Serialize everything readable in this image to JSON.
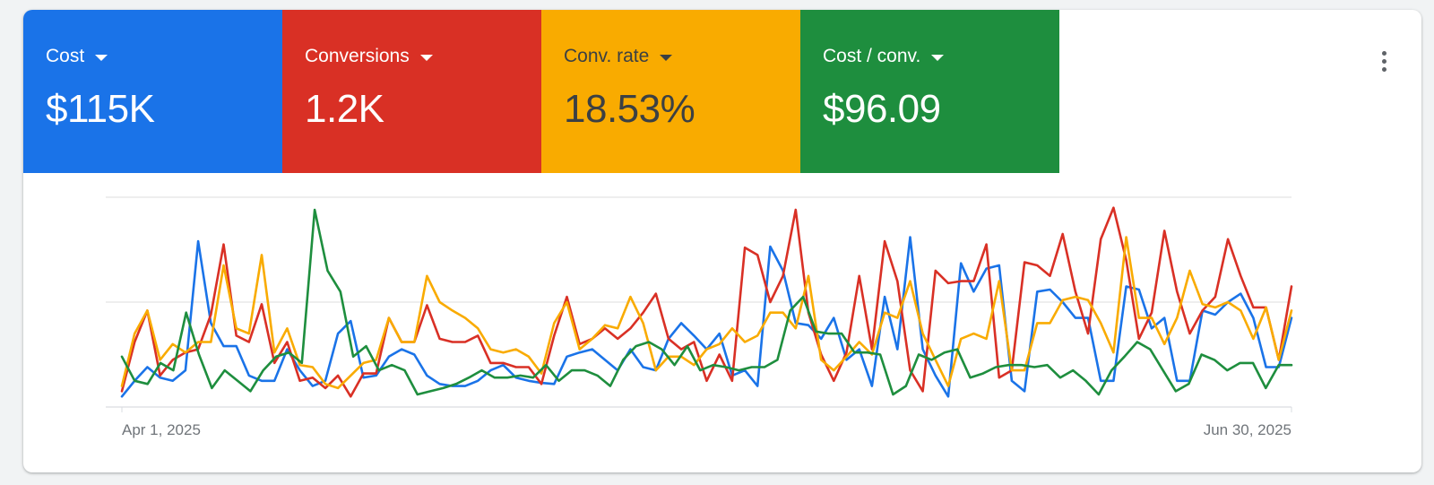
{
  "metrics": [
    {
      "label": "Cost",
      "value": "$115K",
      "bg": "#1a73e8",
      "fg": "#ffffff",
      "line": "#1a73e8"
    },
    {
      "label": "Conversions",
      "value": "1.2K",
      "bg": "#d93025",
      "fg": "#ffffff",
      "line": "#d93025"
    },
    {
      "label": "Conv. rate",
      "value": "18.53%",
      "bg": "#f9ab00",
      "fg": "#3c4043",
      "line": "#f9ab00"
    },
    {
      "label": "Cost / conv.",
      "value": "$96.09",
      "bg": "#1e8e3e",
      "fg": "#ffffff",
      "line": "#1e8e3e"
    }
  ],
  "more_icon": "more-vert-icon",
  "chart_data": {
    "type": "line",
    "x_start": "Apr 1, 2025",
    "x_end": "Jun 30, 2025",
    "x_tick_labels": [
      "Apr 1, 2025",
      "Jun 30, 2025"
    ],
    "ylim": [
      0,
      2
    ],
    "grid": true,
    "gridlines": 3,
    "series": [
      {
        "color": "#1a73e8",
        "values": [
          0.1,
          0.25,
          0.38,
          0.28,
          0.25,
          0.35,
          1.58,
          0.8,
          0.58,
          0.58,
          0.3,
          0.25,
          0.25,
          0.55,
          0.35,
          0.2,
          0.25,
          0.7,
          0.82,
          0.28,
          0.3,
          0.48,
          0.55,
          0.5,
          0.3,
          0.22,
          0.2,
          0.2,
          0.25,
          0.35,
          0.4,
          0.28,
          0.25,
          0.23,
          0.22,
          0.48,
          0.52,
          0.55,
          0.45,
          0.35,
          0.55,
          0.38,
          0.35,
          0.65,
          0.8,
          0.68,
          0.55,
          0.7,
          0.3,
          0.35,
          0.2,
          1.53,
          1.3,
          0.8,
          0.78,
          0.65,
          0.85,
          0.45,
          0.55,
          0.2,
          1.05,
          0.55,
          1.62,
          0.55,
          0.3,
          0.1,
          1.37,
          1.1,
          1.32,
          1.35,
          0.25,
          0.15,
          1.1,
          1.12,
          1.0,
          0.85,
          0.85,
          0.25,
          0.25,
          1.15,
          1.12,
          0.75,
          0.85,
          0.25,
          0.25,
          0.92,
          0.88,
          1.0,
          1.08,
          0.85,
          0.38,
          0.38,
          0.85
        ]
      },
      {
        "color": "#d93025",
        "values": [
          0.15,
          0.62,
          0.92,
          0.3,
          0.45,
          0.52,
          0.55,
          0.88,
          1.55,
          0.68,
          0.62,
          0.98,
          0.42,
          0.62,
          0.25,
          0.28,
          0.18,
          0.3,
          0.1,
          0.32,
          0.32,
          0.85,
          0.62,
          0.62,
          0.97,
          0.65,
          0.62,
          0.62,
          0.68,
          0.42,
          0.42,
          0.38,
          0.38,
          0.22,
          0.68,
          1.05,
          0.6,
          0.65,
          0.75,
          0.65,
          0.75,
          0.9,
          1.08,
          0.65,
          0.55,
          0.62,
          0.25,
          0.5,
          0.25,
          1.52,
          1.45,
          1.0,
          1.25,
          1.88,
          0.9,
          0.5,
          0.25,
          0.52,
          1.25,
          0.55,
          1.58,
          1.2,
          0.35,
          0.15,
          1.3,
          1.18,
          1.2,
          1.2,
          1.55,
          0.28,
          0.35,
          1.38,
          1.35,
          1.25,
          1.65,
          1.1,
          0.7,
          1.6,
          1.9,
          1.4,
          0.65,
          0.9,
          1.68,
          1.1,
          0.7,
          0.92,
          1.05,
          1.6,
          1.25,
          0.95,
          0.95,
          0.45,
          1.15
        ]
      },
      {
        "color": "#f9ab00",
        "values": [
          0.2,
          0.7,
          0.92,
          0.45,
          0.6,
          0.52,
          0.62,
          0.62,
          1.35,
          0.75,
          0.7,
          1.45,
          0.52,
          0.75,
          0.4,
          0.38,
          0.22,
          0.18,
          0.3,
          0.42,
          0.45,
          0.85,
          0.62,
          0.62,
          1.25,
          1.0,
          0.92,
          0.85,
          0.75,
          0.55,
          0.52,
          0.55,
          0.48,
          0.32,
          0.8,
          1.0,
          0.55,
          0.65,
          0.78,
          0.75,
          1.05,
          0.8,
          0.35,
          0.48,
          0.48,
          0.4,
          0.55,
          0.6,
          0.75,
          0.62,
          0.68,
          0.9,
          0.9,
          0.75,
          1.25,
          0.45,
          0.35,
          0.48,
          0.62,
          0.5,
          0.9,
          0.85,
          1.2,
          0.7,
          0.45,
          0.2,
          0.65,
          0.7,
          0.65,
          1.2,
          0.35,
          0.35,
          0.8,
          0.8,
          1.02,
          1.05,
          1.02,
          0.8,
          0.52,
          1.62,
          0.85,
          0.85,
          0.6,
          0.85,
          1.3,
          0.98,
          0.95,
          1.0,
          0.92,
          0.65,
          0.95,
          0.45,
          0.92
        ]
      },
      {
        "color": "#1e8e3e",
        "values": [
          0.48,
          0.25,
          0.22,
          0.42,
          0.35,
          0.9,
          0.5,
          0.18,
          0.35,
          0.25,
          0.15,
          0.35,
          0.48,
          0.52,
          0.42,
          1.88,
          1.3,
          1.1,
          0.48,
          0.58,
          0.35,
          0.4,
          0.35,
          0.12,
          0.15,
          0.18,
          0.22,
          0.28,
          0.35,
          0.28,
          0.28,
          0.3,
          0.28,
          0.4,
          0.25,
          0.35,
          0.35,
          0.3,
          0.2,
          0.45,
          0.58,
          0.62,
          0.55,
          0.4,
          0.58,
          0.35,
          0.4,
          0.38,
          0.35,
          0.38,
          0.38,
          0.45,
          0.92,
          1.05,
          0.72,
          0.7,
          0.7,
          0.52,
          0.52,
          0.5,
          0.12,
          0.2,
          0.5,
          0.45,
          0.52,
          0.55,
          0.28,
          0.32,
          0.38,
          0.4,
          0.4,
          0.38,
          0.4,
          0.28,
          0.35,
          0.25,
          0.12,
          0.35,
          0.48,
          0.62,
          0.55,
          0.35,
          0.15,
          0.22,
          0.5,
          0.45,
          0.35,
          0.42,
          0.42,
          0.18,
          0.4,
          0.4
        ]
      }
    ]
  }
}
